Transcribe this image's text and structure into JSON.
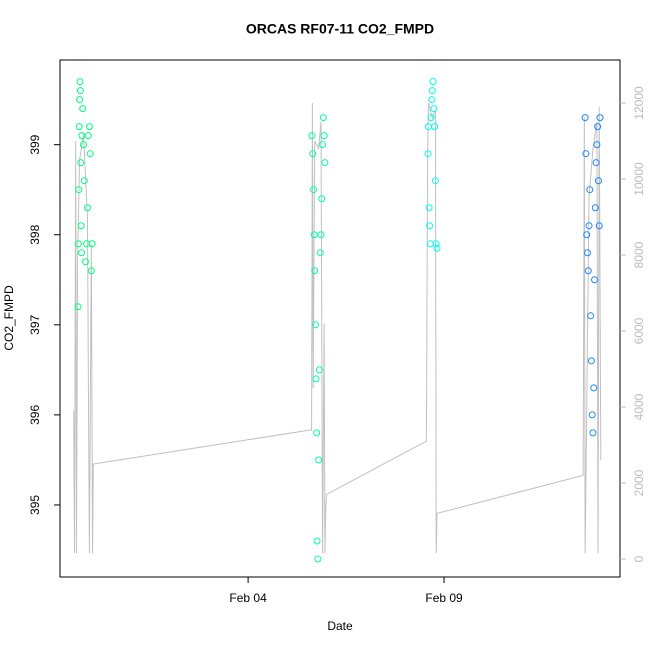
{
  "chart_data": {
    "type": "scatter",
    "title": "ORCAS RF07-11 CO2_FMPD",
    "xlabel": "Date",
    "ylabel": "CO2_FMPD",
    "xlim": [
      -0.8,
      13.49
    ],
    "xticks": [
      {
        "value": 4,
        "label": "Feb 04"
      },
      {
        "value": 9,
        "label": "Feb 09"
      }
    ],
    "ylim": [
      394.2,
      399.94
    ],
    "yticks": [
      395,
      396,
      397,
      398,
      399
    ],
    "y2lim": [
      -474,
      13132
    ],
    "y2ticks": [
      0,
      2000,
      4000,
      6000,
      8000,
      10000,
      12000
    ],
    "series": [
      {
        "color": "#00ff7f",
        "type": "scatter",
        "x": [
          -0.34,
          -0.33,
          -0.32,
          -0.31,
          -0.3,
          -0.29,
          -0.28,
          -0.27,
          -0.26,
          -0.25,
          -0.24,
          -0.22,
          -0.2,
          -0.18,
          -0.15,
          -0.12,
          -0.1,
          -0.08,
          -0.05,
          -0.03,
          0.0,
          0.02
        ],
        "values": [
          397.2,
          397.9,
          398.5,
          399.2,
          399.5,
          399.7,
          399.6,
          398.8,
          398.1,
          397.8,
          399.1,
          399.4,
          399.0,
          398.6,
          397.7,
          397.9,
          398.3,
          399.1,
          399.2,
          398.9,
          397.6,
          397.9
        ]
      },
      {
        "color": "#00ffaa",
        "type": "scatter",
        "x": [
          5.63,
          5.65,
          5.67,
          5.69,
          5.7,
          5.72,
          5.73,
          5.75,
          5.76,
          5.78,
          5.8,
          5.82,
          5.84,
          5.86,
          5.88,
          5.9,
          5.92,
          5.94,
          5.96
        ],
        "values": [
          399.1,
          398.9,
          398.5,
          398.0,
          397.6,
          397.0,
          396.4,
          395.8,
          394.6,
          394.4,
          395.5,
          396.5,
          397.8,
          398.0,
          398.4,
          399.0,
          399.3,
          399.1,
          398.8
        ]
      },
      {
        "color": "#00ffee",
        "type": "scatter",
        "x": [
          8.59,
          8.6,
          8.62,
          8.63,
          8.65,
          8.67,
          8.69,
          8.7,
          8.72,
          8.74,
          8.76,
          8.78,
          8.8,
          8.82
        ],
        "values": [
          398.9,
          399.2,
          398.3,
          398.1,
          397.9,
          399.3,
          399.5,
          399.6,
          399.7,
          399.4,
          399.2,
          398.6,
          397.9,
          397.85
        ]
      },
      {
        "color": "#1e88ff",
        "type": "scatter",
        "x": [
          12.6,
          12.62,
          12.64,
          12.66,
          12.68,
          12.7,
          12.72,
          12.74,
          12.76,
          12.78,
          12.8,
          12.82,
          12.84,
          12.86,
          12.88,
          12.9,
          12.92,
          12.94,
          12.96,
          12.98
        ],
        "values": [
          399.3,
          398.9,
          398.0,
          397.8,
          397.6,
          398.1,
          398.5,
          397.1,
          396.6,
          396.0,
          395.8,
          396.3,
          397.5,
          398.3,
          398.8,
          399.0,
          399.2,
          398.6,
          398.1,
          399.3
        ]
      },
      {
        "color": "#c0c0c0",
        "type": "line",
        "axis": "y2",
        "x": [
          -0.45,
          -0.43,
          -0.4,
          -0.38,
          -0.35,
          -0.3,
          -0.2,
          -0.1,
          -0.05,
          0.0,
          0.03,
          0.05,
          5.62,
          5.64,
          5.66,
          5.7,
          5.8,
          5.86,
          5.9,
          5.94,
          5.96,
          5.98,
          6.0,
          8.55,
          8.58,
          8.6,
          8.7,
          8.78,
          8.8,
          8.82,
          12.55,
          12.58,
          12.6,
          12.7,
          12.8,
          12.9,
          12.93,
          12.96,
          13.0
        ],
        "values": [
          3900,
          150,
          11000,
          150,
          8000,
          10500,
          11200,
          9000,
          150,
          8300,
          150,
          2500,
          3400,
          12000,
          4500,
          11000,
          10800,
          11500,
          150,
          6200,
          150,
          1300,
          1700,
          3100,
          10500,
          12000,
          11600,
          11800,
          150,
          1200,
          2200,
          11600,
          150,
          9500,
          10800,
          11500,
          150,
          11900,
          2600
        ]
      }
    ]
  }
}
